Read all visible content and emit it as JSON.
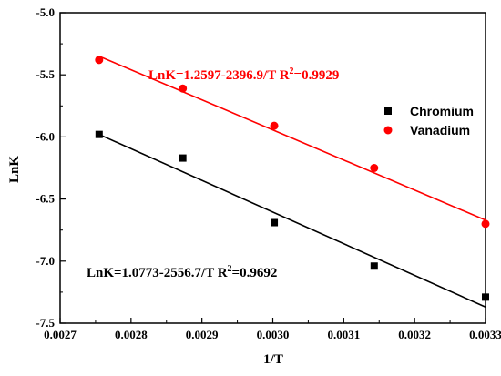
{
  "chart_data": {
    "type": "scatter",
    "xlabel": "1/T",
    "ylabel": "LnK",
    "xlim": [
      0.0027,
      0.0033
    ],
    "ylim": [
      -7.5,
      -5.0
    ],
    "xticks": [
      "0.0027",
      "0.0028",
      "0.0029",
      "0.0030",
      "0.0031",
      "0.0032",
      "0.0033"
    ],
    "yticks": [
      "-5.0",
      "-5.5",
      "-6.0",
      "-6.5",
      "-7.0",
      "-7.5"
    ],
    "legend_position": "right",
    "series": [
      {
        "name": "Chromium",
        "marker": "square",
        "color": "#000000",
        "x": [
          0.002755,
          0.002873,
          0.003002,
          0.003143,
          0.0033
        ],
        "y": [
          -5.98,
          -6.17,
          -6.69,
          -7.04,
          -7.29
        ],
        "fit": {
          "equation": "LnK=1.0773-2556.7/T  R",
          "r2_value": "=0.9692",
          "x_range": [
            0.002755,
            0.0033
          ],
          "y_range": [
            -5.98,
            -7.37
          ]
        }
      },
      {
        "name": "Vanadium",
        "marker": "circle",
        "color": "#ff0000",
        "x": [
          0.002755,
          0.002873,
          0.003002,
          0.003143,
          0.0033
        ],
        "y": [
          -5.38,
          -5.61,
          -5.91,
          -6.25,
          -6.7
        ],
        "fit": {
          "equation": "LnK=1.2597-2396.9/T  R",
          "r2_value": "=0.9929",
          "x_range": [
            0.002755,
            0.0033
          ],
          "y_range": [
            -5.35,
            -6.67
          ]
        }
      }
    ]
  }
}
